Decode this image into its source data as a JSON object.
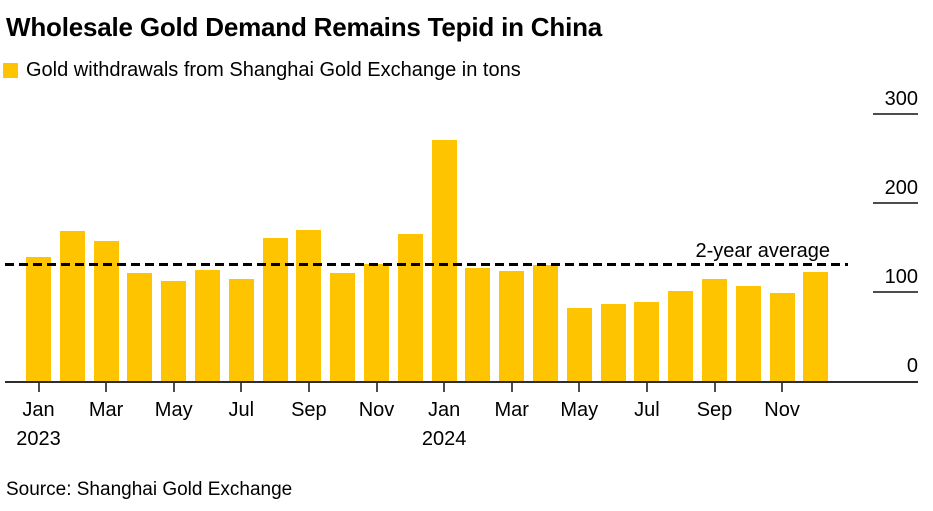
{
  "header": {
    "title": "Wholesale Gold Demand Remains Tepid in China",
    "legend_label": "Gold withdrawals from Shanghai Gold Exchange in tons",
    "legend_color": "#FFC400"
  },
  "chart_data": {
    "type": "bar",
    "title": "Wholesale Gold Demand Remains Tepid in China",
    "series_label": "Gold withdrawals from Shanghai Gold Exchange in tons",
    "ylabel": "tons",
    "xlabel": "",
    "categories": [
      "Jan 2023",
      "Feb 2023",
      "Mar 2023",
      "Apr 2023",
      "May 2023",
      "Jun 2023",
      "Jul 2023",
      "Aug 2023",
      "Sep 2023",
      "Oct 2023",
      "Nov 2023",
      "Dec 2023",
      "Jan 2024",
      "Feb 2024",
      "Mar 2024",
      "Apr 2024",
      "May 2024",
      "Jun 2024",
      "Jul 2024",
      "Aug 2024",
      "Sep 2024",
      "Oct 2024",
      "Nov 2024",
      "Dec 2024"
    ],
    "values": [
      139,
      169,
      157,
      121,
      112,
      125,
      115,
      161,
      170,
      121,
      131,
      165,
      271,
      127,
      124,
      130,
      82,
      86,
      89,
      101,
      115,
      107,
      99,
      122
    ],
    "bar_color": "#FFC400",
    "average_line": {
      "label": "2-year average",
      "value": 131,
      "style": "dashed",
      "color": "#000000"
    },
    "y_ticks": [
      0,
      100,
      200,
      300
    ],
    "ylim": [
      0,
      300
    ],
    "y_axis_side": "right",
    "grid": false,
    "legend_position": "top-left",
    "x_tick_labels": [
      "Jan",
      "Mar",
      "May",
      "Jul",
      "Sep",
      "Nov",
      "Jan",
      "Mar",
      "May",
      "Jul",
      "Sep",
      "Nov"
    ],
    "x_year_labels": [
      {
        "month_index": 0,
        "label": "2023"
      },
      {
        "month_index": 12,
        "label": "2024"
      }
    ]
  },
  "footer": {
    "source": "Source: Shanghai Gold Exchange"
  }
}
